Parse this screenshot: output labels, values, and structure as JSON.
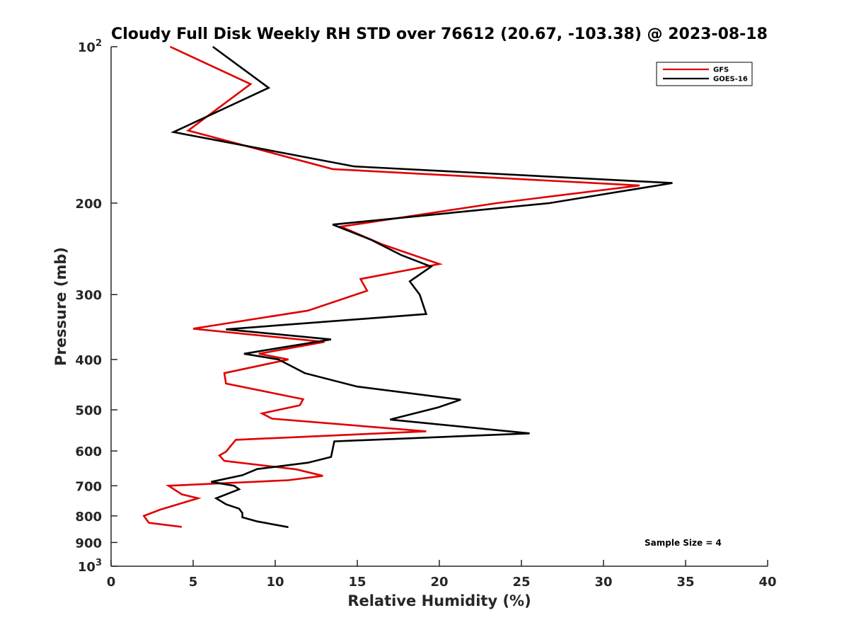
{
  "chart_data": {
    "type": "line",
    "title": "Cloudy Full Disk Weekly RH STD over 76612 (20.67, -103.38) @ 2023-08-18",
    "xlabel": "Relative Humidity (%)",
    "ylabel": "Pressure (mb)",
    "xlim": [
      0,
      40
    ],
    "ylim": [
      100,
      1000
    ],
    "yscale": "log",
    "y_reversed": true,
    "x_ticks": [
      {
        "value": 0,
        "label": "0"
      },
      {
        "value": 5,
        "label": "5"
      },
      {
        "value": 10,
        "label": "10"
      },
      {
        "value": 15,
        "label": "15"
      },
      {
        "value": 20,
        "label": "20"
      },
      {
        "value": 25,
        "label": "25"
      },
      {
        "value": 30,
        "label": "30"
      },
      {
        "value": 35,
        "label": "35"
      },
      {
        "value": 40,
        "label": "40"
      }
    ],
    "y_ticks": [
      {
        "value": 100,
        "base": "10",
        "exp": "2"
      },
      {
        "value": 200,
        "label": "200"
      },
      {
        "value": 300,
        "label": "300"
      },
      {
        "value": 400,
        "label": "400"
      },
      {
        "value": 500,
        "label": "500"
      },
      {
        "value": 600,
        "label": "600"
      },
      {
        "value": 700,
        "label": "700"
      },
      {
        "value": 800,
        "label": "800"
      },
      {
        "value": 900,
        "label": "900"
      },
      {
        "value": 1000,
        "base": "10",
        "exp": "3"
      }
    ],
    "grid": false,
    "legend_position": "top-right",
    "series": [
      {
        "name": "GFS",
        "color": "#e00000",
        "points": [
          [
            3.6,
            100
          ],
          [
            8.5,
            118
          ],
          [
            4.7,
            145
          ],
          [
            13.5,
            172
          ],
          [
            32.2,
            185
          ],
          [
            23.5,
            200
          ],
          [
            14.0,
            222
          ],
          [
            16.5,
            240
          ],
          [
            20.0,
            262
          ],
          [
            15.2,
            280
          ],
          [
            15.6,
            295
          ],
          [
            12.0,
            322
          ],
          [
            5.0,
            349
          ],
          [
            13.0,
            370
          ],
          [
            9.0,
            390
          ],
          [
            10.8,
            400
          ],
          [
            6.9,
            425
          ],
          [
            7.0,
            445
          ],
          [
            11.7,
            477
          ],
          [
            11.5,
            490
          ],
          [
            9.2,
            508
          ],
          [
            9.8,
            520
          ],
          [
            19.2,
            550
          ],
          [
            7.6,
            571
          ],
          [
            7.0,
            602
          ],
          [
            6.6,
            612
          ],
          [
            6.9,
            627
          ],
          [
            11.3,
            651
          ],
          [
            12.9,
            670
          ],
          [
            10.8,
            683
          ],
          [
            3.5,
            700
          ],
          [
            4.3,
            727
          ],
          [
            5.3,
            740
          ],
          [
            3.0,
            778
          ],
          [
            2.0,
            800
          ],
          [
            2.3,
            825
          ],
          [
            4.3,
            840
          ]
        ]
      },
      {
        "name": "GOES-16",
        "color": "#000000",
        "points": [
          [
            6.2,
            100
          ],
          [
            9.6,
            120
          ],
          [
            3.8,
            146
          ],
          [
            14.8,
            170
          ],
          [
            34.2,
            183
          ],
          [
            26.7,
            200
          ],
          [
            13.5,
            220
          ],
          [
            15.8,
            235
          ],
          [
            17.7,
            252
          ],
          [
            19.5,
            265
          ],
          [
            18.2,
            283
          ],
          [
            18.8,
            300
          ],
          [
            19.2,
            327
          ],
          [
            7.0,
            350
          ],
          [
            13.4,
            366
          ],
          [
            8.1,
            390
          ],
          [
            10.2,
            400
          ],
          [
            11.8,
            425
          ],
          [
            15.0,
            451
          ],
          [
            21.3,
            478
          ],
          [
            19.9,
            495
          ],
          [
            17.0,
            522
          ],
          [
            25.5,
            555
          ],
          [
            13.6,
            575
          ],
          [
            13.4,
            616
          ],
          [
            12.0,
            632
          ],
          [
            8.9,
            650
          ],
          [
            8.0,
            668
          ],
          [
            6.1,
            688
          ],
          [
            7.5,
            700
          ],
          [
            7.8,
            711
          ],
          [
            6.4,
            740
          ],
          [
            7.0,
            760
          ],
          [
            7.8,
            775
          ],
          [
            8.0,
            790
          ],
          [
            8.0,
            805
          ],
          [
            8.9,
            820
          ],
          [
            10.8,
            841
          ]
        ]
      }
    ],
    "annotations": [
      "Sample Size = 4"
    ]
  }
}
